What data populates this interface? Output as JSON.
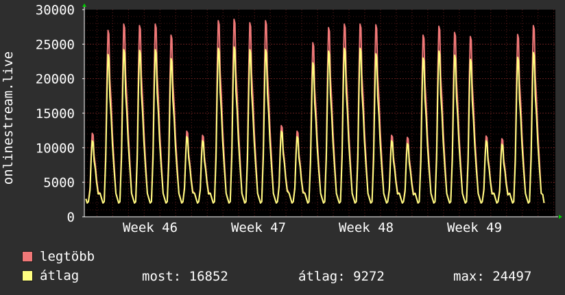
{
  "chart_data": {
    "type": "area",
    "ylabel": "onlinestream.live",
    "ylim": [
      0,
      30000
    ],
    "yticks": [
      0,
      5000,
      10000,
      15000,
      20000,
      25000,
      30000
    ],
    "xtick_labels": [
      "Week 46",
      "Week 47",
      "Week 48",
      "Week 49"
    ],
    "grid": true,
    "series": [
      {
        "name": "legtöbb",
        "color": "#f07878"
      },
      {
        "name": "átlag",
        "color": "#ffff80"
      }
    ],
    "daily_peaks": {
      "legtöbb": [
        12100,
        27000,
        27900,
        27700,
        27900,
        26300,
        12400,
        11800,
        28400,
        28600,
        28100,
        28400,
        13200,
        12400,
        25200,
        27400,
        27900,
        27900,
        27800,
        11800,
        11500,
        26300,
        27600,
        26700,
        26100,
        11700,
        11300,
        26400,
        27700
      ],
      "átlag": [
        11000,
        23500,
        24200,
        24100,
        24200,
        22900,
        11600,
        11000,
        24400,
        24600,
        24200,
        24200,
        12400,
        11600,
        22300,
        24000,
        24400,
        24400,
        23600,
        11000,
        10600,
        23000,
        24000,
        23400,
        22800,
        11000,
        10500,
        23100,
        23800
      ]
    },
    "daily_minimum_approx": 2000
  },
  "legend": {
    "max_label": "legtöbb",
    "avg_label": "átlag",
    "stats": {
      "current": "most: 16852",
      "average": "átlag: 9272",
      "maximum": "max: 24497"
    }
  },
  "colors": {
    "background": "#2e2e2e",
    "plot_background": "#000000",
    "grid": "#6a2020",
    "max_series": "#f07878",
    "avg_series": "#ffff80",
    "axis": "#ffffff",
    "arrow": "#00cc00"
  }
}
